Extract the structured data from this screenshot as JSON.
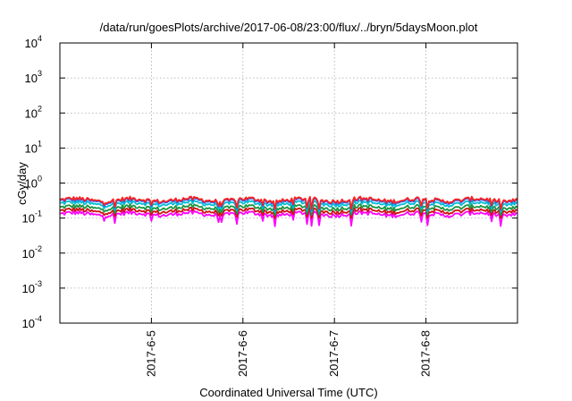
{
  "chart_data": {
    "type": "line",
    "title": "/data/run/goesPlots/archive/2017-06-08/23:00/flux/../bryn/5daysMoon.plot",
    "xlabel": "Coordinated Universal Time (UTC)",
    "ylabel": "cGy/day",
    "y_scale": "log",
    "ylim": [
      0.0001,
      10000
    ],
    "y_ticks": [
      {
        "base": "10",
        "exp": "-4",
        "value": 0.0001
      },
      {
        "base": "10",
        "exp": "-3",
        "value": 0.001
      },
      {
        "base": "10",
        "exp": "-2",
        "value": 0.01
      },
      {
        "base": "10",
        "exp": "-1",
        "value": 0.1
      },
      {
        "base": "10",
        "exp": "0",
        "value": 1
      },
      {
        "base": "10",
        "exp": "1",
        "value": 10
      },
      {
        "base": "10",
        "exp": "2",
        "value": 100
      },
      {
        "base": "10",
        "exp": "3",
        "value": 1000
      },
      {
        "base": "10",
        "exp": "4",
        "value": 10000
      }
    ],
    "x_range": [
      "2017-06-04 00:00",
      "2017-06-09 00:00"
    ],
    "x_ticks": [
      {
        "label": "2017-6-5",
        "value": "2017-06-05"
      },
      {
        "label": "2017-6-6",
        "value": "2017-06-06"
      },
      {
        "label": "2017-6-7",
        "value": "2017-06-07"
      },
      {
        "label": "2017-6-8",
        "value": "2017-06-08"
      }
    ],
    "grid": true,
    "series": [
      {
        "color": "#ff00ff",
        "typical_value": 0.13,
        "dip_min": 0.05
      },
      {
        "color": "#d01010",
        "typical_value": 0.16,
        "dip_min": 0.09
      },
      {
        "color": "#1a9641",
        "typical_value": 0.2,
        "dip_min": 0.11
      },
      {
        "color": "#00bcd4",
        "typical_value": 0.26,
        "dip_min": 0.13
      },
      {
        "color": "#2060ff",
        "typical_value": 0.31,
        "dip_min": 0.15
      },
      {
        "color": "#ff2020",
        "typical_value": 0.33,
        "dip_min": 0.16
      }
    ]
  }
}
